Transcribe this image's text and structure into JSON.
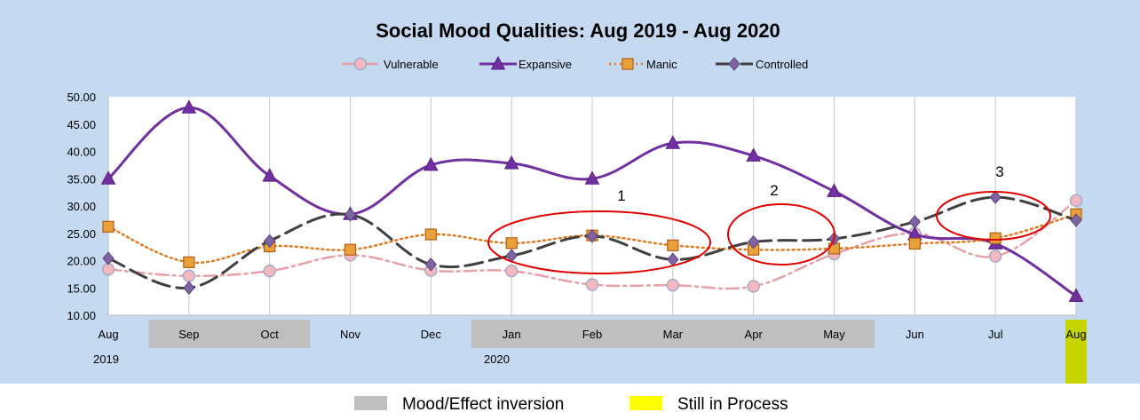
{
  "chart_data": {
    "type": "line",
    "title": "Social Mood Qualities:  Aug 2019 - Aug 2020",
    "categories": [
      "Aug",
      "Sep",
      "Oct",
      "Nov",
      "Dec",
      "Jan",
      "Feb",
      "Mar",
      "Apr",
      "May",
      "Jun",
      "Jul",
      "Aug"
    ],
    "year_labels": [
      "2019",
      "2020"
    ],
    "ylim": [
      10,
      50
    ],
    "yticks": [
      "10.00",
      "15.00",
      "20.00",
      "25.00",
      "30.00",
      "35.00",
      "40.00",
      "45.00",
      "50.00"
    ],
    "grid": "vertical",
    "legend_position": "top",
    "series": [
      {
        "name": "Vulnerable",
        "color": "#e6a0a8",
        "marker": "circle",
        "line": "dashdot",
        "values": [
          18.4,
          17.2,
          18.1,
          21.0,
          18.2,
          18.1,
          15.6,
          15.5,
          15.3,
          21.2,
          25.0,
          20.8,
          31.0
        ]
      },
      {
        "name": "Expansive",
        "color": "#7030a0",
        "marker": "triangle",
        "line": "solid",
        "values": [
          35.0,
          48.0,
          35.5,
          28.5,
          37.5,
          37.8,
          35.0,
          41.5,
          39.2,
          32.7,
          24.8,
          23.1,
          13.5
        ]
      },
      {
        "name": "Manic",
        "color": "#e07b22",
        "marker": "square",
        "line": "dotted",
        "values": [
          26.2,
          19.7,
          22.6,
          22.0,
          24.8,
          23.2,
          24.6,
          22.8,
          22.0,
          22.2,
          23.1,
          24.1,
          28.5
        ]
      },
      {
        "name": "Controlled",
        "color": "#404040",
        "marker": "diamond",
        "line": "longdash",
        "values": [
          20.4,
          15.0,
          23.6,
          28.4,
          19.3,
          20.9,
          24.5,
          20.2,
          23.4,
          24.0,
          27.1,
          31.6,
          27.4
        ]
      }
    ],
    "shaded_bands": [
      {
        "label": "Mood/Effect inversion",
        "from": "Sep",
        "to": "Oct",
        "color": "#bfbfbf"
      },
      {
        "label": "Mood/Effect inversion",
        "from": "Jan",
        "to": "May",
        "color": "#bfbfbf"
      },
      {
        "label": "Still in Process",
        "from": "Aug",
        "to": "Aug",
        "color": "#c6d500"
      }
    ],
    "annotations": [
      {
        "label": "1",
        "center": {
          "x": "Feb",
          "y": 24.8
        },
        "color": "#e00000"
      },
      {
        "label": "2",
        "center": {
          "x": "Apr",
          "y": 24.4
        },
        "color": "#e00000"
      },
      {
        "label": "3",
        "center": {
          "x": "Jul",
          "y": 28.0
        },
        "color": "#e00000"
      }
    ]
  },
  "bottom_legend": {
    "inversion_label": "Mood/Effect inversion",
    "inversion_color": "#bfbfbf",
    "process_label": "Still in Process",
    "process_color": "#ffff00"
  },
  "colors": {
    "background": "#c5d9f1"
  }
}
